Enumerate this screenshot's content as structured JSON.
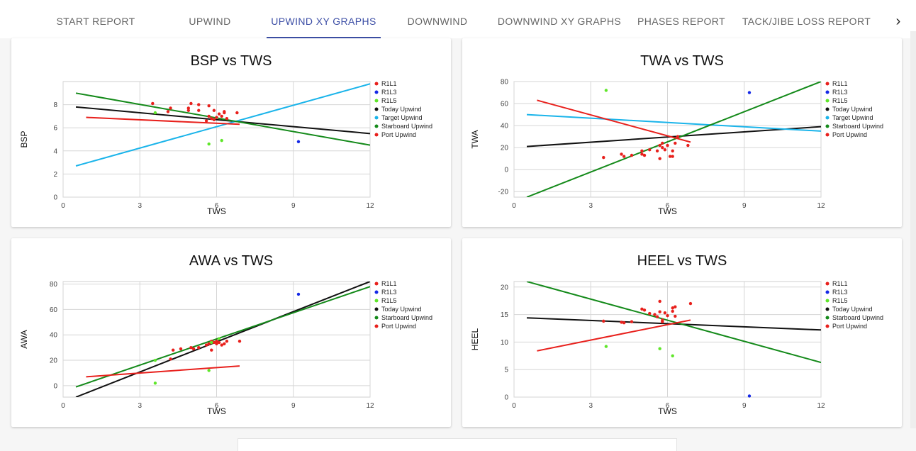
{
  "tabs": [
    {
      "label": "START REPORT",
      "active": false
    },
    {
      "label": "UPWIND",
      "active": false
    },
    {
      "label": "UPWIND XY GRAPHS",
      "active": true
    },
    {
      "label": "DOWNWIND",
      "active": false
    },
    {
      "label": "DOWNWIND XY GRAPHS",
      "active": false
    },
    {
      "label": "PHASES REPORT",
      "active": false
    },
    {
      "label": "TACK/JIBE LOSS REPORT",
      "active": false
    }
  ],
  "next_icon": "chevron-right-icon",
  "legend_colors": {
    "R1L1": "#e8201c",
    "R1L3": "#1428e6",
    "R1L5": "#5fe62a",
    "Today Upwind": "#111111",
    "Target Upwind": "#1ab4ea",
    "Starboard Upwind": "#148a1a",
    "Port Upwind": "#e8201c"
  },
  "chart_data": [
    {
      "type": "scatter",
      "title": "BSP vs TWS",
      "xlabel": "TWS",
      "ylabel": "BSP",
      "xlim": [
        0,
        12
      ],
      "ylim": [
        0,
        10
      ],
      "xticks": [
        0,
        3,
        6,
        9,
        12
      ],
      "yticks": [
        0,
        2,
        4,
        6,
        8
      ],
      "legend": [
        "R1L1",
        "R1L3",
        "R1L5",
        "Today Upwind",
        "Target Upwind",
        "Starboard Upwind",
        "Port Upwind"
      ],
      "legend_position": "right",
      "grid": true,
      "scatter_series": [
        {
          "name": "R1L1",
          "points": [
            [
              3.5,
              8.1
            ],
            [
              4.1,
              7.4
            ],
            [
              4.2,
              7.7
            ],
            [
              4.9,
              7.7
            ],
            [
              4.9,
              7.5
            ],
            [
              5.0,
              8.1
            ],
            [
              5.3,
              8.0
            ],
            [
              5.3,
              7.5
            ],
            [
              5.6,
              6.6
            ],
            [
              5.7,
              7.0
            ],
            [
              5.7,
              7.9
            ],
            [
              5.8,
              6.8
            ],
            [
              5.9,
              6.7
            ],
            [
              5.9,
              7.5
            ],
            [
              6.0,
              6.9
            ],
            [
              6.1,
              7.2
            ],
            [
              6.2,
              7.0
            ],
            [
              6.3,
              7.3
            ],
            [
              6.3,
              7.4
            ],
            [
              6.4,
              6.8
            ],
            [
              6.8,
              7.3
            ]
          ]
        },
        {
          "name": "R1L3",
          "points": [
            [
              9.2,
              4.8
            ]
          ]
        },
        {
          "name": "R1L5",
          "points": [
            [
              3.6,
              7.3
            ],
            [
              5.7,
              4.6
            ],
            [
              6.2,
              4.9
            ]
          ]
        }
      ],
      "line_series": [
        {
          "name": "Today Upwind",
          "points": [
            [
              0.5,
              7.8
            ],
            [
              12,
              5.5
            ]
          ]
        },
        {
          "name": "Target Upwind",
          "points": [
            [
              0.5,
              2.7
            ],
            [
              12,
              9.8
            ]
          ]
        },
        {
          "name": "Starboard Upwind",
          "points": [
            [
              0.5,
              9.0
            ],
            [
              12,
              4.5
            ]
          ]
        },
        {
          "name": "Port Upwind",
          "points": [
            [
              0.9,
              6.9
            ],
            [
              6.9,
              6.3
            ]
          ]
        }
      ]
    },
    {
      "type": "scatter",
      "title": "TWA vs TWS",
      "xlabel": "TWS",
      "ylabel": "TWA",
      "xlim": [
        0,
        12
      ],
      "ylim": [
        -25,
        80
      ],
      "xticks": [
        0,
        3,
        6,
        9,
        12
      ],
      "yticks": [
        -20,
        0,
        20,
        40,
        60,
        80
      ],
      "legend": [
        "R1L1",
        "R1L3",
        "R1L5",
        "Today Upwind",
        "Target Upwind",
        "Starboard Upwind",
        "Port Upwind"
      ],
      "legend_position": "right",
      "grid": true,
      "scatter_series": [
        {
          "name": "R1L1",
          "points": [
            [
              3.5,
              11
            ],
            [
              4.2,
              14
            ],
            [
              4.3,
              12
            ],
            [
              4.6,
              13
            ],
            [
              5.0,
              17
            ],
            [
              5.0,
              14
            ],
            [
              5.1,
              13
            ],
            [
              5.3,
              18
            ],
            [
              5.6,
              17
            ],
            [
              5.7,
              10
            ],
            [
              5.7,
              22
            ],
            [
              5.8,
              20
            ],
            [
              5.8,
              24
            ],
            [
              5.9,
              18
            ],
            [
              6.0,
              22
            ],
            [
              6.1,
              12
            ],
            [
              6.2,
              17
            ],
            [
              6.2,
              12
            ],
            [
              6.3,
              24
            ],
            [
              6.4,
              30
            ],
            [
              6.8,
              22
            ]
          ]
        },
        {
          "name": "R1L3",
          "points": [
            [
              9.2,
              70
            ]
          ]
        },
        {
          "name": "R1L5",
          "points": [
            [
              3.6,
              72
            ]
          ]
        }
      ],
      "line_series": [
        {
          "name": "Today Upwind",
          "points": [
            [
              0.5,
              21
            ],
            [
              12,
              39
            ]
          ]
        },
        {
          "name": "Target Upwind",
          "points": [
            [
              0.5,
              50
            ],
            [
              12,
              35
            ]
          ]
        },
        {
          "name": "Starboard Upwind",
          "points": [
            [
              0.5,
              -25
            ],
            [
              12,
              80
            ]
          ]
        },
        {
          "name": "Port Upwind",
          "points": [
            [
              0.9,
              63
            ],
            [
              6.9,
              25
            ]
          ]
        }
      ]
    },
    {
      "type": "scatter",
      "title": "AWA vs TWS",
      "xlabel": "TWS",
      "ylabel": "AWA",
      "xlim": [
        0,
        12
      ],
      "ylim": [
        -9,
        82
      ],
      "xticks": [
        0,
        3,
        6,
        9,
        12
      ],
      "yticks": [
        0,
        20,
        40,
        60,
        80
      ],
      "legend": [
        "R1L1",
        "R1L3",
        "R1L5",
        "Today Upwind",
        "Starboard Upwind",
        "Port Upwind"
      ],
      "legend_position": "right",
      "grid": true,
      "scatter_series": [
        {
          "name": "R1L1",
          "points": [
            [
              4.2,
              21
            ],
            [
              4.3,
              28
            ],
            [
              4.6,
              29
            ],
            [
              5.0,
              30
            ],
            [
              5.1,
              29
            ],
            [
              5.3,
              30
            ],
            [
              5.6,
              32
            ],
            [
              5.7,
              33
            ],
            [
              5.8,
              28
            ],
            [
              5.8,
              35
            ],
            [
              5.9,
              34
            ],
            [
              6.0,
              35
            ],
            [
              6.0,
              33
            ],
            [
              6.1,
              34
            ],
            [
              6.2,
              32
            ],
            [
              6.3,
              33
            ],
            [
              6.4,
              35
            ],
            [
              6.9,
              35
            ]
          ]
        },
        {
          "name": "R1L3",
          "points": [
            [
              9.2,
              72
            ]
          ]
        },
        {
          "name": "R1L5",
          "points": [
            [
              3.6,
              20
            ],
            [
              3.6,
              2
            ],
            [
              5.7,
              12
            ],
            [
              5.8,
              34
            ],
            [
              6.1,
              37
            ]
          ]
        }
      ],
      "line_series": [
        {
          "name": "Today Upwind",
          "points": [
            [
              0.5,
              -9
            ],
            [
              12,
              82
            ]
          ]
        },
        {
          "name": "Starboard Upwind",
          "points": [
            [
              0.5,
              -1
            ],
            [
              12,
              78
            ]
          ]
        },
        {
          "name": "Port Upwind",
          "points": [
            [
              0.9,
              7
            ],
            [
              6.9,
              15.5
            ]
          ]
        }
      ]
    },
    {
      "type": "scatter",
      "title": "HEEL vs TWS",
      "xlabel": "TWS",
      "ylabel": "HEEL",
      "xlim": [
        0,
        12
      ],
      "ylim": [
        0,
        21
      ],
      "xticks": [
        0,
        3,
        6,
        9,
        12
      ],
      "yticks": [
        0,
        5,
        10,
        15,
        20
      ],
      "legend": [
        "R1L1",
        "R1L3",
        "R1L5",
        "Today Upwind",
        "Starboard Upwind",
        "Port Upwind"
      ],
      "legend_position": "right",
      "grid": true,
      "scatter_series": [
        {
          "name": "R1L1",
          "points": [
            [
              3.5,
              13.8
            ],
            [
              4.2,
              13.6
            ],
            [
              4.3,
              13.5
            ],
            [
              4.6,
              13.7
            ],
            [
              5.0,
              16.0
            ],
            [
              5.1,
              15.8
            ],
            [
              5.3,
              15.2
            ],
            [
              5.5,
              15.0
            ],
            [
              5.6,
              14.6
            ],
            [
              5.7,
              15.5
            ],
            [
              5.7,
              17.4
            ],
            [
              5.8,
              14.0
            ],
            [
              5.8,
              13.7
            ],
            [
              5.9,
              15.3
            ],
            [
              6.0,
              14.8
            ],
            [
              6.2,
              16.2
            ],
            [
              6.2,
              15.6
            ],
            [
              6.3,
              14.7
            ],
            [
              6.3,
              16.4
            ],
            [
              6.9,
              17.0
            ]
          ]
        },
        {
          "name": "R1L3",
          "points": [
            [
              9.2,
              0.2
            ]
          ]
        },
        {
          "name": "R1L5",
          "points": [
            [
              3.6,
              9.2
            ],
            [
              5.7,
              8.8
            ],
            [
              6.2,
              7.5
            ]
          ]
        }
      ],
      "line_series": [
        {
          "name": "Today Upwind",
          "points": [
            [
              0.5,
              14.4
            ],
            [
              12,
              12.2
            ]
          ]
        },
        {
          "name": "Starboard Upwind",
          "points": [
            [
              0.5,
              21
            ],
            [
              12,
              6.3
            ]
          ]
        },
        {
          "name": "Port Upwind",
          "points": [
            [
              0.9,
              8.4
            ],
            [
              6.9,
              14.0
            ]
          ]
        }
      ]
    }
  ]
}
